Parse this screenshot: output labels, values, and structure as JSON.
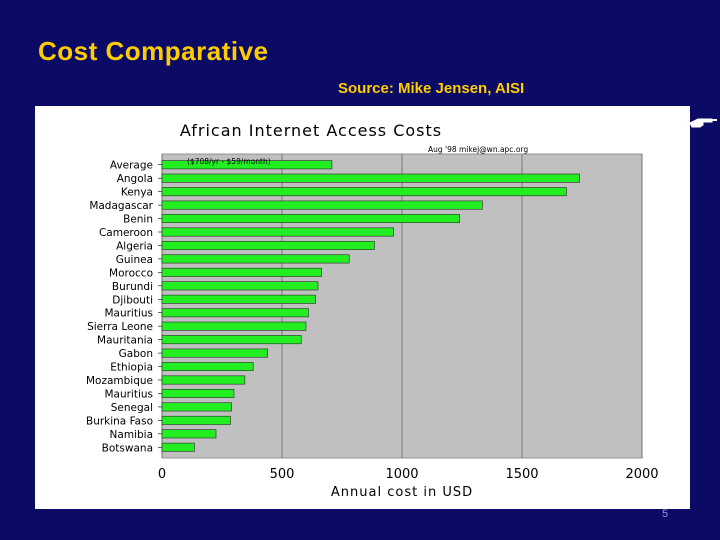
{
  "slide": {
    "title": "Cost Comparative",
    "source": "Source: Mike Jensen, AISI",
    "page_number": "5"
  },
  "colors": {
    "background": "#0b0b66",
    "title": "#ffcc00",
    "plot_area": "#c0c0c0",
    "bar": "#22ee22",
    "bar_outline": "#2a2a2a"
  },
  "icons": {
    "pointer": "pointing-hand-icon"
  },
  "chart_data": {
    "type": "bar",
    "orientation": "horizontal",
    "title": "African Internet Access Costs",
    "subtitle": "Aug '98   mikej@wn.apc.org",
    "annotation": "($708/yr - $59/month)",
    "xlabel": "Annual cost in USD",
    "ylabel": "",
    "xlim": [
      0,
      2000
    ],
    "xticks": [
      0,
      500,
      1000,
      1500,
      2000
    ],
    "grid": "vertical",
    "legend": "none",
    "categories": [
      "Average",
      "Angola",
      "Kenya",
      "Madagascar",
      "Benin",
      "Cameroon",
      "Algeria",
      "Guinea",
      "Morocco",
      "Burundi",
      "Djibouti",
      "Mauritius",
      "Sierra Leone",
      "Mauritania",
      "Gabon",
      "Ethiopia",
      "Mozambique",
      "Mauritius",
      "Senegal",
      "Burkina Faso",
      "Namibia",
      "Botswana"
    ],
    "values": [
      708,
      1740,
      1685,
      1335,
      1240,
      965,
      885,
      780,
      665,
      650,
      640,
      610,
      600,
      580,
      440,
      380,
      345,
      300,
      290,
      285,
      225,
      135
    ]
  }
}
